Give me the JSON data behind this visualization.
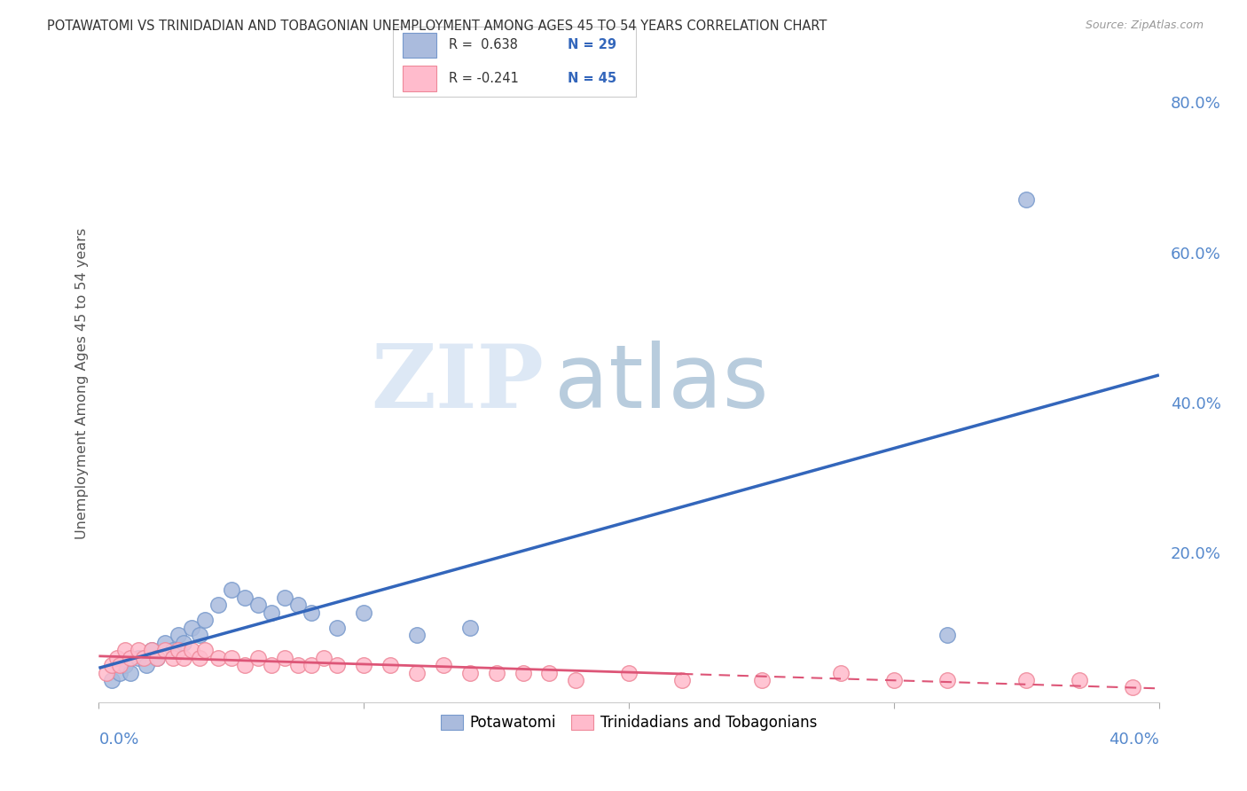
{
  "title": "POTAWATOMI VS TRINIDADIAN AND TOBAGONIAN UNEMPLOYMENT AMONG AGES 45 TO 54 YEARS CORRELATION CHART",
  "source": "Source: ZipAtlas.com",
  "ylabel": "Unemployment Among Ages 45 to 54 years",
  "xlim": [
    0.0,
    0.4
  ],
  "ylim": [
    0.0,
    0.85
  ],
  "yticks": [
    0.0,
    0.2,
    0.4,
    0.6,
    0.8
  ],
  "ytick_labels": [
    "",
    "20.0%",
    "40.0%",
    "60.0%",
    "80.0%"
  ],
  "xtick_left_label": "0.0%",
  "xtick_right_label": "40.0%",
  "grid_color": "#cccccc",
  "background_color": "#ffffff",
  "blue_color": "#aabbdd",
  "blue_color_edge": "#7799cc",
  "pink_color": "#ffbbcc",
  "pink_color_edge": "#ee8899",
  "blue_line_color": "#3366bb",
  "pink_line_color": "#dd5577",
  "title_color": "#333333",
  "axis_label_color": "#5588cc",
  "legend_R1": "R =  0.638",
  "legend_N1": "N = 29",
  "legend_R2": "R = -0.241",
  "legend_N2": "N = 45",
  "potawatomi_x": [
    0.005,
    0.008,
    0.01,
    0.012,
    0.015,
    0.018,
    0.02,
    0.022,
    0.025,
    0.028,
    0.03,
    0.032,
    0.035,
    0.038,
    0.04,
    0.045,
    0.05,
    0.055,
    0.06,
    0.065,
    0.07,
    0.075,
    0.08,
    0.09,
    0.1,
    0.12,
    0.14,
    0.32,
    0.35
  ],
  "potawatomi_y": [
    0.03,
    0.04,
    0.05,
    0.04,
    0.06,
    0.05,
    0.07,
    0.06,
    0.08,
    0.07,
    0.09,
    0.08,
    0.1,
    0.09,
    0.11,
    0.13,
    0.15,
    0.14,
    0.13,
    0.12,
    0.14,
    0.13,
    0.12,
    0.1,
    0.12,
    0.09,
    0.1,
    0.09,
    0.67
  ],
  "trinidadian_x": [
    0.003,
    0.005,
    0.007,
    0.008,
    0.01,
    0.012,
    0.015,
    0.017,
    0.02,
    0.022,
    0.025,
    0.028,
    0.03,
    0.032,
    0.035,
    0.038,
    0.04,
    0.045,
    0.05,
    0.055,
    0.06,
    0.065,
    0.07,
    0.075,
    0.08,
    0.085,
    0.09,
    0.1,
    0.11,
    0.12,
    0.13,
    0.14,
    0.15,
    0.16,
    0.17,
    0.18,
    0.2,
    0.22,
    0.25,
    0.28,
    0.3,
    0.32,
    0.35,
    0.37,
    0.39
  ],
  "trinidadian_y": [
    0.04,
    0.05,
    0.06,
    0.05,
    0.07,
    0.06,
    0.07,
    0.06,
    0.07,
    0.06,
    0.07,
    0.06,
    0.07,
    0.06,
    0.07,
    0.06,
    0.07,
    0.06,
    0.06,
    0.05,
    0.06,
    0.05,
    0.06,
    0.05,
    0.05,
    0.06,
    0.05,
    0.05,
    0.05,
    0.04,
    0.05,
    0.04,
    0.04,
    0.04,
    0.04,
    0.03,
    0.04,
    0.03,
    0.03,
    0.04,
    0.03,
    0.03,
    0.03,
    0.03,
    0.02
  ],
  "watermark_zip": "ZIP",
  "watermark_atlas": "atlas"
}
